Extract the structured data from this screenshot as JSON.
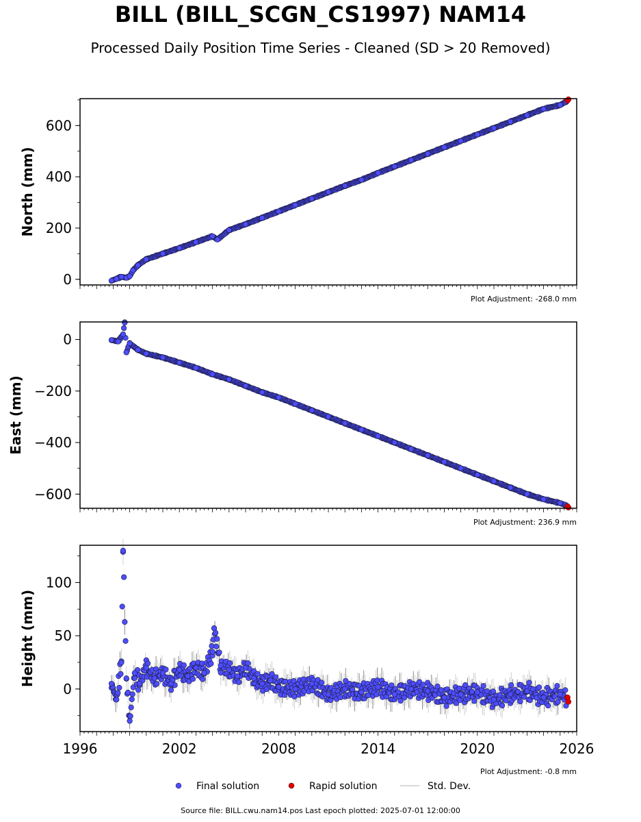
{
  "title": "BILL (BILL_SCGN_CS1997) NAM14",
  "subtitle": "Processed Daily Position Time Series - Cleaned (SD > 20 Removed)",
  "chart_data": [
    {
      "type": "scatter",
      "ylabel": "North (mm)",
      "xlim": [
        1996,
        2026
      ],
      "ylim": [
        -22,
        705
      ],
      "yticks": [
        0,
        200,
        400,
        600
      ],
      "adjustment": "Plot Adjustment: -268.0 mm",
      "series": [
        {
          "name": "Final solution",
          "color": "#4d4dff",
          "x": [
            1997.9,
            1998.2,
            1998.5,
            1998.8,
            1999.0,
            1999.2,
            1999.5,
            2000,
            2001,
            2002,
            2003,
            2004,
            2004.3,
            2005,
            2006,
            2007,
            2008,
            2009,
            2010,
            2011,
            2012,
            2013,
            2014,
            2015,
            2016,
            2017,
            2018,
            2019,
            2020,
            2021,
            2022,
            2023,
            2024,
            2025.0,
            2025.4
          ],
          "y": [
            -5,
            2,
            10,
            6,
            12,
            35,
            55,
            78,
            100,
            122,
            145,
            168,
            155,
            192,
            215,
            240,
            265,
            290,
            315,
            340,
            365,
            388,
            415,
            440,
            465,
            490,
            515,
            540,
            565,
            590,
            615,
            640,
            665,
            680,
            695
          ]
        },
        {
          "name": "Rapid solution",
          "color": "#e00000",
          "x": [
            2025.45,
            2025.5
          ],
          "y": [
            698,
            702
          ]
        }
      ]
    },
    {
      "type": "scatter",
      "ylabel": "East (mm)",
      "xlim": [
        1996,
        2026
      ],
      "ylim": [
        -655,
        68
      ],
      "yticks": [
        0,
        -200,
        -400,
        -600
      ],
      "adjustment": "Plot Adjustment: 236.9 mm",
      "series": [
        {
          "name": "Final solution",
          "color": "#4d4dff",
          "x": [
            1997.9,
            1998.3,
            1998.6,
            1998.7,
            1998.8,
            1999.0,
            1999.5,
            2000,
            2001,
            2002,
            2003,
            2004,
            2005,
            2006,
            2007,
            2008,
            2009,
            2010,
            2011,
            2012,
            2013,
            2014,
            2015,
            2016,
            2017,
            2018,
            2019,
            2020,
            2021,
            2022,
            2023,
            2024,
            2025.0,
            2025.4
          ],
          "y": [
            -2,
            -8,
            20,
            65,
            -50,
            -15,
            -40,
            -55,
            -70,
            -90,
            -110,
            -135,
            -155,
            -180,
            -205,
            -225,
            -250,
            -275,
            -300,
            -325,
            -350,
            -375,
            -400,
            -425,
            -450,
            -475,
            -500,
            -525,
            -550,
            -575,
            -600,
            -620,
            -635,
            -645
          ]
        },
        {
          "name": "Rapid solution",
          "color": "#e00000",
          "x": [
            2025.45,
            2025.5
          ],
          "y": [
            -648,
            -652
          ]
        }
      ]
    },
    {
      "type": "scatter",
      "ylabel": "Height (mm)",
      "xlim": [
        1996,
        2026
      ],
      "ylim": [
        -40,
        135
      ],
      "yticks": [
        0,
        50,
        100
      ],
      "xticks": [
        1996,
        2002,
        2008,
        2014,
        2020,
        2026
      ],
      "adjustment": "Plot Adjustment: -0.8 mm",
      "series": [
        {
          "name": "Final solution",
          "color": "#4d4dff",
          "x": [
            1997.9,
            1998.2,
            1998.5,
            1998.6,
            1998.8,
            1999.0,
            1999.3,
            1999.6,
            2000,
            2000.5,
            2001,
            2001.5,
            2002,
            2002.5,
            2003,
            2003.5,
            2004,
            2004.1,
            2004.5,
            2005,
            2005.5,
            2006,
            2006.5,
            2007,
            2007.5,
            2008,
            2009,
            2010,
            2011,
            2012,
            2013,
            2014,
            2015,
            2016,
            2017,
            2018,
            2019,
            2020,
            2021,
            2022,
            2023,
            2024,
            2025,
            2025.4
          ],
          "y": [
            5,
            -10,
            25,
            130,
            10,
            -30,
            15,
            5,
            20,
            10,
            15,
            5,
            18,
            12,
            20,
            15,
            35,
            57,
            22,
            18,
            12,
            20,
            10,
            5,
            8,
            2,
            0,
            5,
            -5,
            0,
            -3,
            2,
            -5,
            0,
            -2,
            -8,
            -5,
            -3,
            -10,
            -5,
            -2,
            -8,
            -5,
            -8
          ]
        },
        {
          "name": "Rapid solution",
          "color": "#e00000",
          "x": [
            2025.45,
            2025.5
          ],
          "y": [
            -8,
            -12
          ]
        }
      ]
    }
  ],
  "legend": {
    "final": "Final solution",
    "rapid": "Rapid solution",
    "std": "Std. Dev."
  },
  "colors": {
    "final": "#4d4dff",
    "rapid": "#e00000",
    "std": "#cccccc"
  },
  "footer": "Source file: BILL.cwu.nam14.pos  Last epoch plotted: 2025-07-01 12:00:00"
}
